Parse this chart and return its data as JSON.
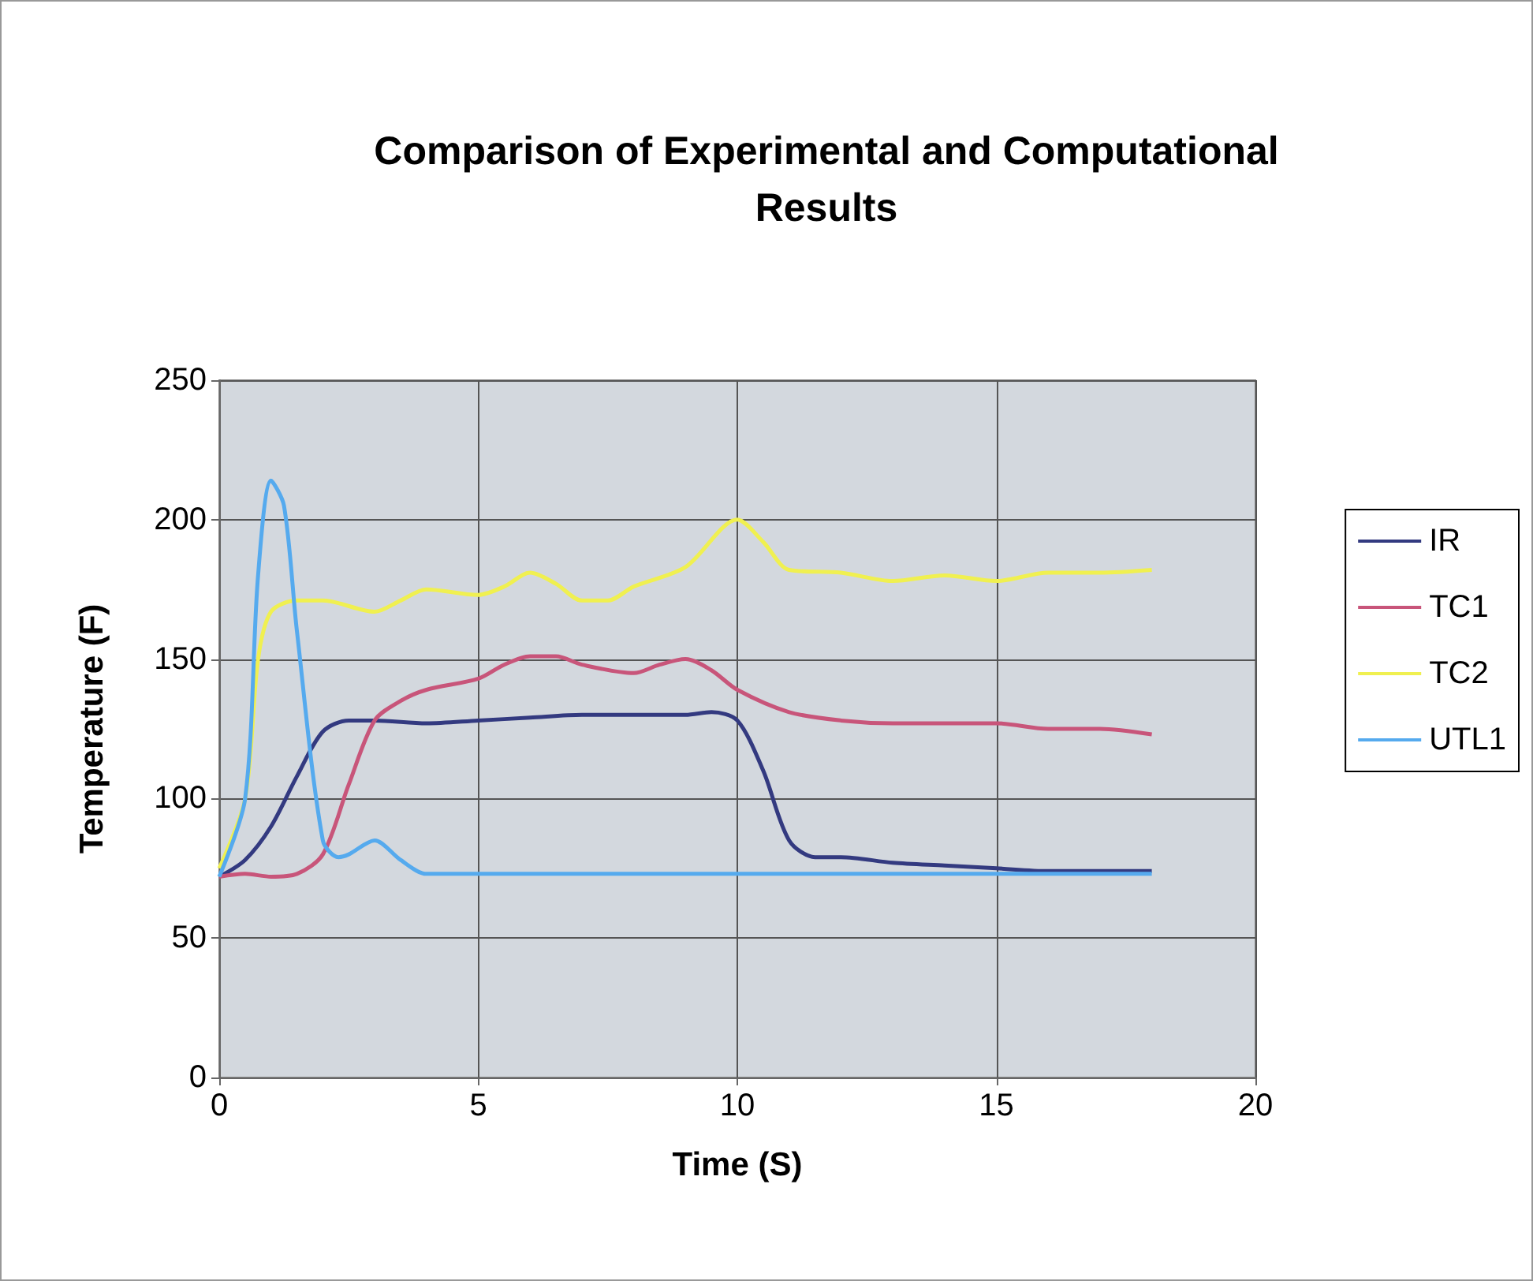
{
  "chart_data": {
    "type": "line",
    "title": "Comparison of Experimental and Computational\nResults",
    "xlabel": "Time (S)",
    "ylabel": "Temperature (F)",
    "xlim": [
      0,
      20
    ],
    "xticks": [
      0,
      5,
      10,
      15,
      20
    ],
    "ylim": [
      0,
      250
    ],
    "yticks": [
      0,
      50,
      100,
      150,
      200,
      250
    ],
    "grid": true,
    "legend": "right",
    "marker": "none",
    "line_style": "solid",
    "series": [
      {
        "name": "IR",
        "color": "#333a80",
        "x": [
          0,
          0.5,
          1,
          1.5,
          2,
          2.5,
          3,
          4,
          5,
          6,
          7,
          8,
          9,
          9.5,
          10,
          10.5,
          11,
          11.5,
          12,
          13,
          14,
          15,
          16,
          17,
          18
        ],
        "values": [
          72,
          78,
          90,
          108,
          124,
          128,
          128,
          127,
          128,
          129,
          130,
          130,
          130,
          131,
          128,
          110,
          85,
          79,
          79,
          77,
          76,
          75,
          74,
          74,
          74
        ]
      },
      {
        "name": "TC1",
        "color": "#c8557a",
        "x": [
          0,
          0.5,
          1,
          1.5,
          2,
          2.5,
          3,
          3.5,
          4,
          5,
          5.5,
          6,
          6.5,
          7,
          8,
          8.5,
          9,
          9.5,
          10,
          11,
          12,
          13,
          14,
          15,
          16,
          17,
          18
        ],
        "values": [
          72,
          73,
          72,
          73,
          80,
          105,
          128,
          135,
          139,
          143,
          148,
          151,
          151,
          148,
          145,
          148,
          150,
          146,
          139,
          131,
          128,
          127,
          127,
          127,
          125,
          125,
          123
        ]
      },
      {
        "name": "TC2",
        "color": "#f0f050",
        "x": [
          0,
          0.5,
          0.75,
          1,
          1.5,
          2,
          3,
          3.5,
          4,
          5,
          5.5,
          6,
          6.5,
          7,
          7.5,
          8,
          9,
          10,
          10.5,
          11,
          12,
          13,
          14,
          15,
          16,
          17,
          18
        ],
        "values": [
          75,
          100,
          150,
          167,
          171,
          171,
          167,
          171,
          175,
          173,
          176,
          181,
          177,
          171,
          171,
          176,
          183,
          200,
          192,
          182,
          181,
          178,
          180,
          178,
          181,
          181,
          182
        ]
      },
      {
        "name": "UTL1",
        "color": "#55aaee",
        "x": [
          0,
          0.5,
          0.75,
          1,
          1.25,
          1.5,
          2,
          2.3,
          2.5,
          3,
          3.5,
          4,
          5,
          10,
          15,
          18
        ],
        "values": [
          72,
          100,
          180,
          214,
          205,
          160,
          85,
          79,
          80,
          85,
          78,
          73,
          73,
          73,
          73,
          73
        ]
      }
    ]
  }
}
